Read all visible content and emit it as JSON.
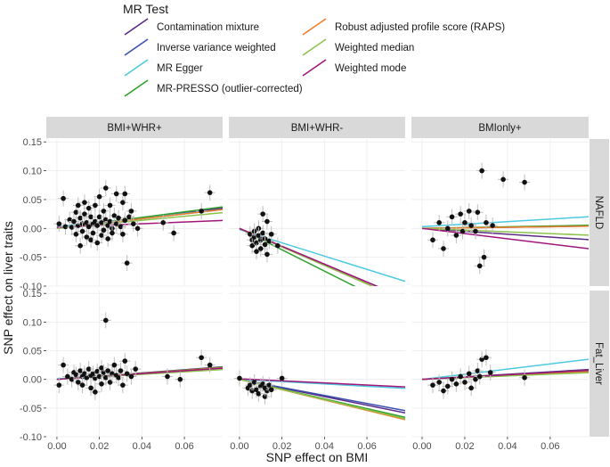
{
  "chart_data": {
    "type": "scatter",
    "xlabel": "SNP effect on BMI",
    "ylabel": "SNP effect on liver traits",
    "legend_title": "MR Test",
    "xlim": [
      -0.005,
      0.078
    ],
    "ylim": [
      -0.1,
      0.155
    ],
    "x_ticks": [
      "0.00",
      "0.02",
      "0.04",
      "0.06"
    ],
    "x_tick_values": [
      0,
      0.02,
      0.04,
      0.06
    ],
    "y_ticks": [
      "-0.10",
      "-0.05",
      "0.00",
      "0.05",
      "0.10",
      "0.15"
    ],
    "y_tick_values": [
      -0.1,
      -0.05,
      0,
      0.05,
      0.1,
      0.15
    ],
    "columns": [
      "BMI+WHR+",
      "BMI+WHR-",
      "BMIonly+"
    ],
    "rows": [
      "NAFLD",
      "Fat_Liver"
    ],
    "methods": [
      {
        "name": "Contamination mixture",
        "color": "#5b2a86"
      },
      {
        "name": "Inverse variance weighted",
        "color": "#3a4fb0"
      },
      {
        "name": "MR Egger",
        "color": "#4cc9e0"
      },
      {
        "name": "MR-PRESSO (outlier-corrected)",
        "color": "#2ca02c"
      },
      {
        "name": "Robust adjusted profile score (RAPS)",
        "color": "#f07c2a"
      },
      {
        "name": "Weighted median",
        "color": "#8bc34a"
      },
      {
        "name": "Weighted mode",
        "color": "#a0167a"
      }
    ],
    "panels": [
      {
        "row": "NAFLD",
        "col": "BMI+WHR+",
        "slopes": [
          0.45,
          0.42,
          0.38,
          0.48,
          0.42,
          0.35,
          0.15
        ],
        "intercepts": [
          0,
          0,
          0.003,
          0,
          0,
          0,
          0.002
        ],
        "points": [
          [
            0.001,
            0.008
          ],
          [
            0.003,
            0.052
          ],
          [
            0.004,
            0.003
          ],
          [
            0.006,
            0.015
          ],
          [
            0.007,
            0.002
          ],
          [
            0.008,
            0.012
          ],
          [
            0.009,
            0.028
          ],
          [
            0.009,
            -0.01
          ],
          [
            0.01,
            0.005
          ],
          [
            0.01,
            0.04
          ],
          [
            0.011,
            -0.03
          ],
          [
            0.011,
            0.018
          ],
          [
            0.012,
            0.008
          ],
          [
            0.012,
            -0.005
          ],
          [
            0.013,
            0.025
          ],
          [
            0.013,
            0.045
          ],
          [
            0.014,
            -0.015
          ],
          [
            0.014,
            0.01
          ],
          [
            0.015,
            0.003
          ],
          [
            0.015,
            0.035
          ],
          [
            0.016,
            -0.02
          ],
          [
            0.016,
            0.02
          ],
          [
            0.017,
            0.008
          ],
          [
            0.017,
            -0.008
          ],
          [
            0.018,
            0.04
          ],
          [
            0.018,
            0.012
          ],
          [
            0.019,
            -0.025
          ],
          [
            0.019,
            0.005
          ],
          [
            0.02,
            0.02
          ],
          [
            0.02,
            0.055
          ],
          [
            0.021,
            -0.012
          ],
          [
            0.021,
            0.01
          ],
          [
            0.022,
            0.03
          ],
          [
            0.022,
            -0.003
          ],
          [
            0.023,
            0.015
          ],
          [
            0.023,
            0.07
          ],
          [
            0.024,
            -0.018
          ],
          [
            0.024,
            0.005
          ],
          [
            0.025,
            0.04
          ],
          [
            0.025,
            0.012
          ],
          [
            0.026,
            0.0
          ],
          [
            0.026,
            -0.008
          ],
          [
            0.027,
            0.022
          ],
          [
            0.028,
            0.06
          ],
          [
            0.028,
            0.008
          ],
          [
            0.029,
            0.018
          ],
          [
            0.03,
            0.003
          ],
          [
            0.031,
            0.045
          ],
          [
            0.031,
            -0.01
          ],
          [
            0.032,
            0.06
          ],
          [
            0.032,
            0.014
          ],
          [
            0.033,
            -0.06
          ],
          [
            0.034,
            0.02
          ],
          [
            0.035,
            0.03
          ],
          [
            0.036,
            0.008
          ],
          [
            0.038,
            0.0
          ],
          [
            0.05,
            0.01
          ],
          [
            0.055,
            -0.008
          ],
          [
            0.068,
            0.03
          ],
          [
            0.072,
            0.062
          ]
        ]
      },
      {
        "row": "NAFLD",
        "col": "BMI+WHR-",
        "slopes": [
          -1.55,
          -1.6,
          -1.15,
          -1.85,
          -1.6,
          -1.6,
          -1.55
        ],
        "intercepts": [
          0,
          0,
          -0.002,
          0,
          0,
          0,
          0
        ],
        "points": [
          [
            0.005,
            -0.01
          ],
          [
            0.006,
            -0.02
          ],
          [
            0.006,
            -0.03
          ],
          [
            0.007,
            -0.005
          ],
          [
            0.007,
            -0.015
          ],
          [
            0.008,
            -0.025
          ],
          [
            0.008,
            -0.04
          ],
          [
            0.009,
            0.0
          ],
          [
            0.009,
            -0.012
          ],
          [
            0.01,
            -0.02
          ],
          [
            0.01,
            -0.035
          ],
          [
            0.011,
            0.025
          ],
          [
            0.011,
            -0.008
          ],
          [
            0.012,
            -0.018
          ],
          [
            0.012,
            -0.028
          ],
          [
            0.013,
            -0.045
          ],
          [
            0.013,
            0.012
          ],
          [
            0.014,
            -0.022
          ],
          [
            0.015,
            -0.01
          ],
          [
            0.018,
            -0.03
          ]
        ]
      },
      {
        "row": "NAFLD",
        "col": "BMIonly+",
        "slopes": [
          -0.25,
          0.05,
          0.22,
          0.07,
          0.05,
          -0.15,
          -0.45
        ],
        "intercepts": [
          0,
          0,
          0.003,
          0,
          0,
          0,
          0
        ],
        "points": [
          [
            0.005,
            -0.02
          ],
          [
            0.008,
            0.01
          ],
          [
            0.01,
            -0.035
          ],
          [
            0.012,
            0.0
          ],
          [
            0.014,
            0.02
          ],
          [
            0.016,
            -0.012
          ],
          [
            0.018,
            0.025
          ],
          [
            0.019,
            -0.005
          ],
          [
            0.02,
            0.01
          ],
          [
            0.022,
            0.03
          ],
          [
            0.023,
            0.005
          ],
          [
            0.025,
            -0.005
          ],
          [
            0.026,
            0.028
          ],
          [
            0.027,
            -0.065
          ],
          [
            0.028,
            0.1
          ],
          [
            0.029,
            -0.05
          ],
          [
            0.03,
            0.01
          ],
          [
            0.033,
            0.005
          ],
          [
            0.038,
            0.085
          ],
          [
            0.048,
            0.08
          ]
        ]
      },
      {
        "row": "Fat_Liver",
        "col": "BMI+WHR+",
        "slopes": [
          0.28,
          0.26,
          0.24,
          0.27,
          0.26,
          0.22,
          0.25
        ],
        "intercepts": [
          0,
          0,
          0.001,
          0,
          0,
          0,
          0
        ],
        "points": [
          [
            0.001,
            -0.01
          ],
          [
            0.003,
            0.025
          ],
          [
            0.005,
            0.005
          ],
          [
            0.007,
            0.0
          ],
          [
            0.008,
            0.012
          ],
          [
            0.009,
            0.008
          ],
          [
            0.01,
            -0.005
          ],
          [
            0.011,
            0.015
          ],
          [
            0.012,
            0.005
          ],
          [
            0.012,
            -0.01
          ],
          [
            0.013,
            0.01
          ],
          [
            0.014,
            0.003
          ],
          [
            0.015,
            0.018
          ],
          [
            0.016,
            -0.015
          ],
          [
            0.016,
            0.007
          ],
          [
            0.017,
            0.01
          ],
          [
            0.018,
            0.002
          ],
          [
            0.018,
            -0.022
          ],
          [
            0.019,
            0.014
          ],
          [
            0.02,
            0.005
          ],
          [
            0.021,
            0.02
          ],
          [
            0.021,
            -0.008
          ],
          [
            0.022,
            0.012
          ],
          [
            0.023,
            0.003
          ],
          [
            0.023,
            0.103
          ],
          [
            0.024,
            0.015
          ],
          [
            0.025,
            -0.005
          ],
          [
            0.026,
            0.01
          ],
          [
            0.027,
            0.025
          ],
          [
            0.028,
            0.007
          ],
          [
            0.029,
            0.003
          ],
          [
            0.03,
            0.015
          ],
          [
            0.031,
            -0.01
          ],
          [
            0.032,
            0.032
          ],
          [
            0.033,
            0.01
          ],
          [
            0.035,
            0.005
          ],
          [
            0.037,
            0.018
          ],
          [
            0.052,
            0.005
          ],
          [
            0.058,
            0.0
          ],
          [
            0.068,
            0.038
          ],
          [
            0.072,
            0.025
          ]
        ]
      },
      {
        "row": "Fat_Liver",
        "col": "BMI+WHR-",
        "slopes": [
          -0.75,
          -0.7,
          -0.2,
          -0.85,
          -0.9,
          -0.88,
          -0.18
        ],
        "intercepts": [
          0,
          0,
          0.0,
          0,
          0,
          0,
          0.001
        ],
        "points": [
          [
            0.0,
            0.002
          ],
          [
            0.004,
            -0.015
          ],
          [
            0.005,
            -0.01
          ],
          [
            0.006,
            -0.02
          ],
          [
            0.007,
            -0.005
          ],
          [
            0.008,
            -0.018
          ],
          [
            0.009,
            -0.025
          ],
          [
            0.01,
            -0.012
          ],
          [
            0.011,
            -0.008
          ],
          [
            0.012,
            -0.03
          ],
          [
            0.012,
            -0.015
          ],
          [
            0.013,
            -0.02
          ],
          [
            0.014,
            -0.01
          ],
          [
            0.015,
            -0.018
          ],
          [
            0.02,
            0.002
          ]
        ]
      },
      {
        "row": "Fat_Liver",
        "col": "BMIonly+",
        "slopes": [
          0.22,
          0.18,
          0.45,
          0.2,
          0.18,
          0.15,
          0.2
        ],
        "intercepts": [
          0,
          0,
          0.0,
          0,
          0,
          0,
          0
        ],
        "points": [
          [
            0.005,
            -0.01
          ],
          [
            0.008,
            -0.005
          ],
          [
            0.01,
            -0.02
          ],
          [
            0.012,
            -0.012
          ],
          [
            0.014,
            0.0
          ],
          [
            0.016,
            -0.008
          ],
          [
            0.018,
            0.005
          ],
          [
            0.02,
            -0.005
          ],
          [
            0.022,
            0.01
          ],
          [
            0.023,
            -0.015
          ],
          [
            0.025,
            0.0
          ],
          [
            0.026,
            0.015
          ],
          [
            0.027,
            0.005
          ],
          [
            0.028,
            0.035
          ],
          [
            0.03,
            0.038
          ],
          [
            0.032,
            0.012
          ],
          [
            0.048,
            0.003
          ]
        ]
      }
    ]
  }
}
